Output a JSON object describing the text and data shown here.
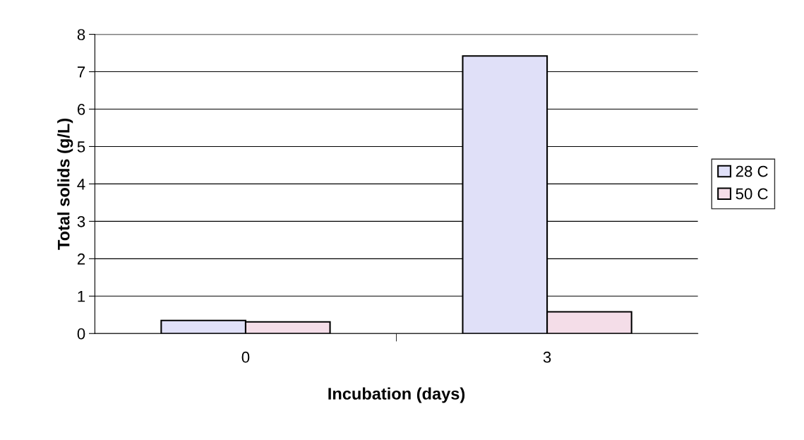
{
  "chart_data": {
    "type": "bar",
    "xlabel": "Incubation (days)",
    "ylabel": "Total solids (g/L)",
    "categories": [
      "0",
      "3"
    ],
    "series": [
      {
        "name": "28 C",
        "color": "#e0e0f8",
        "values": [
          0.35,
          7.42
        ]
      },
      {
        "name": "50 C",
        "color": "#f4dde8",
        "values": [
          0.31,
          0.58
        ]
      }
    ],
    "ylim": [
      0,
      8
    ],
    "yticks": [
      0,
      1,
      2,
      3,
      4,
      5,
      6,
      7,
      8
    ],
    "grid": "y",
    "legend": "right"
  }
}
